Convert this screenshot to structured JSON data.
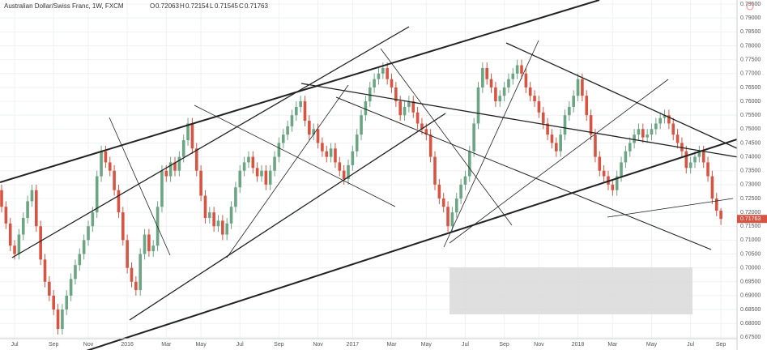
{
  "chart_data": {
    "type": "candlestick",
    "title": "Australian Dollar/Swiss Franc, 1W, FXCM",
    "ohlc_labels": [
      "O",
      "H",
      "L",
      "C"
    ],
    "up_color": "#6ba583",
    "down_color": "#d75442",
    "grid": true,
    "categories": [
      null,
      null,
      null,
      "Jul",
      null,
      null,
      null,
      null,
      null,
      null,
      null,
      null,
      "Sep",
      null,
      null,
      null,
      null,
      null,
      null,
      null,
      "Nov",
      null,
      null,
      null,
      null,
      null,
      null,
      null,
      null,
      "2016",
      null,
      null,
      null,
      null,
      null,
      null,
      null,
      null,
      "Mar",
      null,
      null,
      null,
      null,
      null,
      null,
      null,
      "May",
      null,
      null,
      null,
      null,
      null,
      null,
      null,
      null,
      "Jul",
      null,
      null,
      null,
      null,
      null,
      null,
      null,
      null,
      "Sep",
      null,
      null,
      null,
      null,
      null,
      null,
      null,
      null,
      "Nov",
      null,
      null,
      null,
      null,
      null,
      null,
      null,
      "2017",
      null,
      null,
      null,
      null,
      null,
      null,
      null,
      null,
      "Mar",
      null,
      null,
      null,
      null,
      null,
      null,
      null,
      "May",
      null,
      null,
      null,
      null,
      null,
      null,
      null,
      null,
      "Jul",
      null,
      null,
      null,
      null,
      null,
      null,
      null,
      null,
      "Sep",
      null,
      null,
      null,
      null,
      null,
      null,
      null,
      "Nov",
      null,
      null,
      null,
      null,
      null,
      null,
      null,
      null,
      "2018",
      null,
      null,
      null,
      null,
      null,
      null,
      null,
      "Mar",
      null,
      null,
      null,
      null,
      null,
      null,
      null,
      null,
      "May",
      null,
      null,
      null,
      null,
      null,
      null,
      null,
      null,
      "Jul",
      null,
      null,
      null,
      null,
      null,
      null,
      "Sep"
    ],
    "open": [
      0.728,
      0.722,
      0.716,
      0.708,
      0.705,
      0.712,
      0.718,
      0.724,
      0.728,
      0.715,
      0.703,
      0.695,
      0.69,
      0.685,
      0.678,
      0.685,
      0.69,
      0.696,
      0.701,
      0.705,
      0.71,
      0.715,
      0.72,
      0.733,
      0.742,
      0.738,
      0.735,
      0.728,
      0.72,
      0.71,
      0.7,
      0.695,
      0.692,
      0.705,
      0.712,
      0.706,
      0.708,
      0.722,
      0.735,
      0.733,
      0.738,
      0.735,
      0.74,
      0.746,
      0.752,
      0.743,
      0.735,
      0.726,
      0.718,
      0.72,
      0.715,
      0.717,
      0.712,
      0.716,
      0.722,
      0.729,
      0.735,
      0.738,
      0.74,
      0.736,
      0.733,
      0.735,
      0.73,
      0.735,
      0.74,
      0.745,
      0.748,
      0.751,
      0.755,
      0.758,
      0.76,
      0.753,
      0.748,
      0.75,
      0.745,
      0.742,
      0.74,
      0.743,
      0.738,
      0.735,
      0.732,
      0.737,
      0.742,
      0.748,
      0.755,
      0.76,
      0.765,
      0.768,
      0.77,
      0.772,
      0.768,
      0.765,
      0.76,
      0.755,
      0.758,
      0.76,
      0.756,
      0.752,
      0.75,
      0.748,
      0.74,
      0.73,
      0.725,
      0.722,
      0.715,
      0.72,
      0.725,
      0.73,
      0.733,
      0.742,
      0.752,
      0.765,
      0.772,
      0.768,
      0.765,
      0.76,
      0.762,
      0.765,
      0.768,
      0.77,
      0.773,
      0.77,
      0.765,
      0.762,
      0.76,
      0.756,
      0.752,
      0.748,
      0.745,
      0.742,
      0.748,
      0.755,
      0.758,
      0.762,
      0.768,
      0.762,
      0.755,
      0.748,
      0.74,
      0.735,
      0.733,
      0.73,
      0.728,
      0.733,
      0.738,
      0.742,
      0.745,
      0.748,
      0.75,
      0.747,
      0.748,
      0.75,
      0.752,
      0.754,
      0.755,
      0.752,
      0.748,
      0.745,
      0.742,
      0.736,
      0.738,
      0.74,
      0.742,
      0.738,
      0.733,
      0.725,
      0.72063
    ],
    "high": [
      0.73,
      0.724,
      0.718,
      0.71,
      0.714,
      0.72,
      0.726,
      0.73,
      0.73,
      0.717,
      0.705,
      0.697,
      0.692,
      0.687,
      0.687,
      0.692,
      0.698,
      0.703,
      0.707,
      0.712,
      0.717,
      0.722,
      0.735,
      0.744,
      0.744,
      0.74,
      0.737,
      0.73,
      0.722,
      0.712,
      0.702,
      0.697,
      0.707,
      0.714,
      0.714,
      0.71,
      0.724,
      0.737,
      0.737,
      0.74,
      0.74,
      0.742,
      0.748,
      0.754,
      0.754,
      0.745,
      0.737,
      0.728,
      0.722,
      0.722,
      0.719,
      0.719,
      0.718,
      0.724,
      0.731,
      0.737,
      0.74,
      0.742,
      0.742,
      0.738,
      0.737,
      0.737,
      0.737,
      0.742,
      0.747,
      0.75,
      0.753,
      0.757,
      0.76,
      0.762,
      0.762,
      0.755,
      0.752,
      0.752,
      0.747,
      0.744,
      0.745,
      0.745,
      0.74,
      0.737,
      0.739,
      0.744,
      0.75,
      0.757,
      0.762,
      0.767,
      0.77,
      0.772,
      0.774,
      0.774,
      0.77,
      0.767,
      0.762,
      0.76,
      0.762,
      0.762,
      0.758,
      0.754,
      0.752,
      0.75,
      0.742,
      0.732,
      0.727,
      0.724,
      0.722,
      0.727,
      0.732,
      0.735,
      0.744,
      0.754,
      0.767,
      0.774,
      0.774,
      0.77,
      0.767,
      0.764,
      0.767,
      0.77,
      0.772,
      0.775,
      0.775,
      0.772,
      0.767,
      0.764,
      0.762,
      0.758,
      0.754,
      0.75,
      0.747,
      0.75,
      0.757,
      0.76,
      0.764,
      0.77,
      0.77,
      0.764,
      0.757,
      0.75,
      0.742,
      0.737,
      0.735,
      0.732,
      0.735,
      0.74,
      0.744,
      0.747,
      0.75,
      0.752,
      0.752,
      0.75,
      0.752,
      0.754,
      0.756,
      0.757,
      0.757,
      0.754,
      0.75,
      0.747,
      0.744,
      0.74,
      0.742,
      0.744,
      0.744,
      0.74,
      0.735,
      0.727,
      0.72154
    ],
    "low": [
      0.72,
      0.714,
      0.706,
      0.703,
      0.703,
      0.71,
      0.716,
      0.722,
      0.713,
      0.701,
      0.693,
      0.688,
      0.683,
      0.676,
      0.676,
      0.683,
      0.688,
      0.694,
      0.699,
      0.703,
      0.708,
      0.713,
      0.718,
      0.731,
      0.736,
      0.733,
      0.726,
      0.718,
      0.708,
      0.698,
      0.693,
      0.69,
      0.69,
      0.703,
      0.704,
      0.704,
      0.706,
      0.72,
      0.731,
      0.731,
      0.733,
      0.733,
      0.738,
      0.744,
      0.741,
      0.733,
      0.724,
      0.716,
      0.716,
      0.713,
      0.713,
      0.71,
      0.71,
      0.714,
      0.72,
      0.727,
      0.733,
      0.736,
      0.734,
      0.731,
      0.731,
      0.728,
      0.728,
      0.733,
      0.738,
      0.743,
      0.746,
      0.749,
      0.753,
      0.756,
      0.751,
      0.746,
      0.746,
      0.743,
      0.74,
      0.738,
      0.738,
      0.736,
      0.733,
      0.73,
      0.73,
      0.735,
      0.74,
      0.746,
      0.753,
      0.758,
      0.763,
      0.766,
      0.768,
      0.766,
      0.763,
      0.758,
      0.753,
      0.753,
      0.756,
      0.754,
      0.75,
      0.748,
      0.746,
      0.738,
      0.728,
      0.723,
      0.72,
      0.713,
      0.713,
      0.718,
      0.723,
      0.728,
      0.731,
      0.74,
      0.75,
      0.763,
      0.766,
      0.763,
      0.758,
      0.758,
      0.76,
      0.763,
      0.766,
      0.768,
      0.768,
      0.763,
      0.76,
      0.758,
      0.754,
      0.75,
      0.746,
      0.743,
      0.74,
      0.74,
      0.746,
      0.753,
      0.756,
      0.76,
      0.76,
      0.753,
      0.746,
      0.738,
      0.733,
      0.731,
      0.728,
      0.726,
      0.726,
      0.731,
      0.736,
      0.74,
      0.743,
      0.746,
      0.745,
      0.745,
      0.746,
      0.748,
      0.75,
      0.752,
      0.75,
      0.746,
      0.743,
      0.74,
      0.734,
      0.734,
      0.736,
      0.738,
      0.736,
      0.731,
      0.723,
      0.7186,
      0.71545
    ],
    "close": [
      0.722,
      0.716,
      0.708,
      0.705,
      0.712,
      0.718,
      0.724,
      0.728,
      0.715,
      0.703,
      0.695,
      0.69,
      0.685,
      0.678,
      0.685,
      0.69,
      0.696,
      0.701,
      0.705,
      0.71,
      0.715,
      0.72,
      0.733,
      0.742,
      0.738,
      0.735,
      0.728,
      0.72,
      0.71,
      0.7,
      0.695,
      0.692,
      0.705,
      0.712,
      0.706,
      0.708,
      0.722,
      0.735,
      0.733,
      0.738,
      0.735,
      0.74,
      0.746,
      0.752,
      0.743,
      0.735,
      0.726,
      0.718,
      0.72,
      0.715,
      0.717,
      0.712,
      0.716,
      0.722,
      0.729,
      0.735,
      0.738,
      0.74,
      0.736,
      0.733,
      0.735,
      0.73,
      0.735,
      0.74,
      0.745,
      0.748,
      0.751,
      0.755,
      0.758,
      0.76,
      0.753,
      0.748,
      0.75,
      0.745,
      0.742,
      0.74,
      0.743,
      0.738,
      0.735,
      0.732,
      0.737,
      0.742,
      0.748,
      0.755,
      0.76,
      0.765,
      0.768,
      0.77,
      0.772,
      0.768,
      0.765,
      0.76,
      0.755,
      0.758,
      0.76,
      0.756,
      0.752,
      0.75,
      0.748,
      0.74,
      0.73,
      0.725,
      0.722,
      0.715,
      0.72,
      0.725,
      0.73,
      0.733,
      0.742,
      0.752,
      0.765,
      0.772,
      0.768,
      0.765,
      0.76,
      0.762,
      0.765,
      0.768,
      0.77,
      0.773,
      0.77,
      0.765,
      0.762,
      0.76,
      0.756,
      0.752,
      0.748,
      0.745,
      0.742,
      0.748,
      0.755,
      0.758,
      0.762,
      0.768,
      0.762,
      0.755,
      0.748,
      0.74,
      0.735,
      0.733,
      0.73,
      0.728,
      0.733,
      0.738,
      0.742,
      0.745,
      0.748,
      0.75,
      0.747,
      0.748,
      0.75,
      0.752,
      0.754,
      0.755,
      0.752,
      0.748,
      0.745,
      0.742,
      0.736,
      0.738,
      0.74,
      0.742,
      0.738,
      0.733,
      0.725,
      0.7206,
      0.71763
    ],
    "ylim": [
      0.6745,
      0.7965
    ],
    "yticks": [
      {
        "value": 0.675,
        "label": "0.67500"
      },
      {
        "value": 0.68,
        "label": "0.68000"
      },
      {
        "value": 0.685,
        "label": "0.68500"
      },
      {
        "value": 0.69,
        "label": "0.69000"
      },
      {
        "value": 0.695,
        "label": "0.69500"
      },
      {
        "value": 0.7,
        "label": "0.70000"
      },
      {
        "value": 0.705,
        "label": "0.70500"
      },
      {
        "value": 0.71,
        "label": "0.71000"
      },
      {
        "value": 0.715,
        "label": "0.71500"
      },
      {
        "value": 0.72,
        "label": "0.72000"
      },
      {
        "value": 0.725,
        "label": "0.72500"
      },
      {
        "value": 0.73,
        "label": "0.73000"
      },
      {
        "value": 0.735,
        "label": "0.73500"
      },
      {
        "value": 0.74,
        "label": "0.74000"
      },
      {
        "value": 0.745,
        "label": "0.74500"
      },
      {
        "value": 0.75,
        "label": "0.75000"
      },
      {
        "value": 0.755,
        "label": "0.75500"
      },
      {
        "value": 0.76,
        "label": "0.76000"
      },
      {
        "value": 0.765,
        "label": "0.76500"
      },
      {
        "value": 0.77,
        "label": "0.77000"
      },
      {
        "value": 0.775,
        "label": "0.77500"
      },
      {
        "value": 0.78,
        "label": "0.78000"
      },
      {
        "value": 0.785,
        "label": "0.78500"
      },
      {
        "value": 0.79,
        "label": "0.79000"
      },
      {
        "value": 0.795,
        "label": "0.79500"
      }
    ]
  }
}
